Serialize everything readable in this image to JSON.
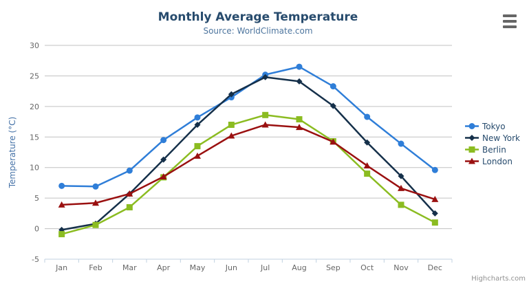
{
  "header": {
    "title": "Monthly Average Temperature",
    "subtitle": "Source: WorldClimate.com"
  },
  "menu": {
    "icon": "hamburger-menu-icon"
  },
  "credit": {
    "label": "Highcharts.com"
  },
  "axis_colors": {
    "grid": "#C0C0C0",
    "axis_line": "#C0D0E0",
    "tick_label": "#666666",
    "yaxis_title": "#4572A7"
  },
  "chart_data": {
    "type": "line",
    "title": "Monthly Average Temperature",
    "subtitle": "Source: WorldClimate.com",
    "categories": [
      "Jan",
      "Feb",
      "Mar",
      "Apr",
      "May",
      "Jun",
      "Jul",
      "Aug",
      "Sep",
      "Oct",
      "Nov",
      "Dec"
    ],
    "series": [
      {
        "name": "Tokyo",
        "color": "#2F7ED8",
        "marker": "circle",
        "values": [
          7.0,
          6.9,
          9.5,
          14.5,
          18.2,
          21.5,
          25.2,
          26.5,
          23.3,
          18.3,
          13.9,
          9.6
        ]
      },
      {
        "name": "New York",
        "color": "#15304A",
        "marker": "diamond",
        "values": [
          -0.2,
          0.8,
          5.7,
          11.3,
          17.0,
          22.0,
          24.8,
          24.1,
          20.1,
          14.1,
          8.6,
          2.5
        ]
      },
      {
        "name": "Berlin",
        "color": "#8BBC21",
        "marker": "square",
        "values": [
          -0.9,
          0.6,
          3.5,
          8.4,
          13.5,
          17.0,
          18.6,
          17.9,
          14.3,
          9.0,
          3.9,
          1.0
        ]
      },
      {
        "name": "London",
        "color": "#9A1010",
        "marker": "triangle",
        "values": [
          3.9,
          4.2,
          5.7,
          8.5,
          11.9,
          15.2,
          17.0,
          16.6,
          14.2,
          10.3,
          6.6,
          4.8
        ]
      }
    ],
    "xlabel": "",
    "ylabel": "Temperature (°C)",
    "ylim": [
      -5,
      30
    ],
    "ytick_step": 5,
    "yticks": [
      -5,
      0,
      5,
      10,
      15,
      20,
      25,
      30
    ],
    "grid": true,
    "legend_position": "right"
  }
}
